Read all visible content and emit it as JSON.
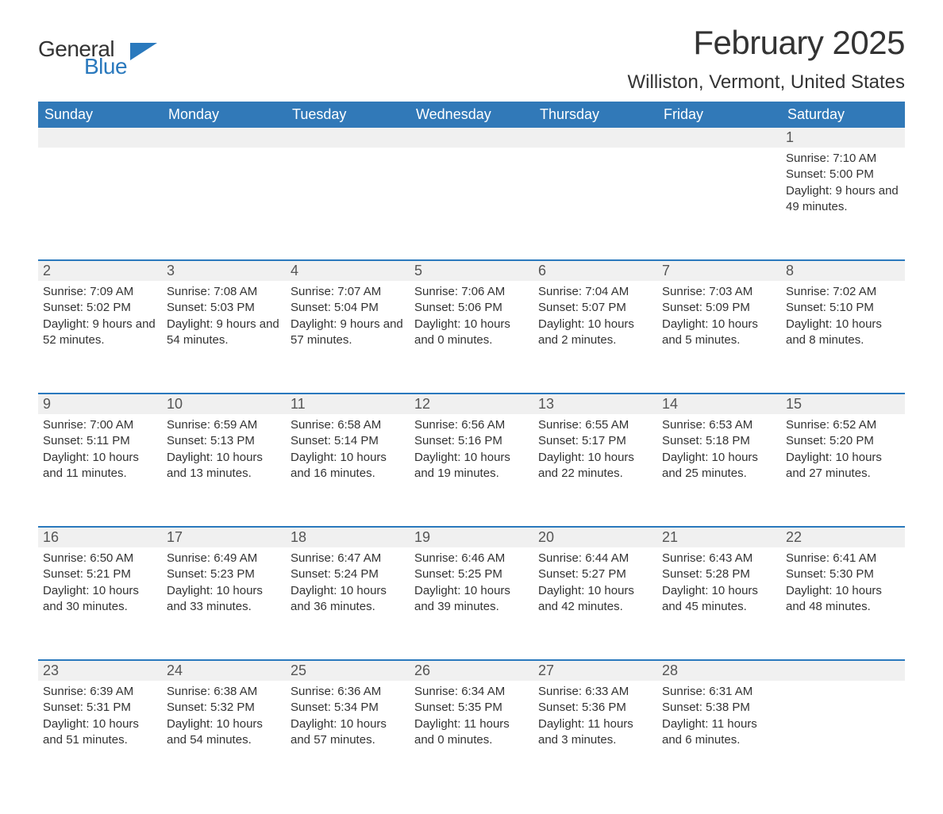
{
  "logo": {
    "word1": "General",
    "word2": "Blue"
  },
  "colors": {
    "header_bg": "#3179b8",
    "header_text": "#ffffff",
    "rule": "#2a79bd",
    "daynum_bg": "#f0f0f0",
    "text": "#333333",
    "page_bg": "#ffffff",
    "logo_blue": "#2a79bd"
  },
  "typography": {
    "title_size_pt": 32,
    "location_size_pt": 18,
    "weekday_size_pt": 14,
    "body_size_pt": 11
  },
  "title": "February 2025",
  "location": "Williston, Vermont, United States",
  "weekdays": [
    "Sunday",
    "Monday",
    "Tuesday",
    "Wednesday",
    "Thursday",
    "Friday",
    "Saturday"
  ],
  "weeks": [
    [
      null,
      null,
      null,
      null,
      null,
      null,
      {
        "n": "1",
        "sunrise": "7:10 AM",
        "sunset": "5:00 PM",
        "daylight": "9 hours and 49 minutes."
      }
    ],
    [
      {
        "n": "2",
        "sunrise": "7:09 AM",
        "sunset": "5:02 PM",
        "daylight": "9 hours and 52 minutes."
      },
      {
        "n": "3",
        "sunrise": "7:08 AM",
        "sunset": "5:03 PM",
        "daylight": "9 hours and 54 minutes."
      },
      {
        "n": "4",
        "sunrise": "7:07 AM",
        "sunset": "5:04 PM",
        "daylight": "9 hours and 57 minutes."
      },
      {
        "n": "5",
        "sunrise": "7:06 AM",
        "sunset": "5:06 PM",
        "daylight": "10 hours and 0 minutes."
      },
      {
        "n": "6",
        "sunrise": "7:04 AM",
        "sunset": "5:07 PM",
        "daylight": "10 hours and 2 minutes."
      },
      {
        "n": "7",
        "sunrise": "7:03 AM",
        "sunset": "5:09 PM",
        "daylight": "10 hours and 5 minutes."
      },
      {
        "n": "8",
        "sunrise": "7:02 AM",
        "sunset": "5:10 PM",
        "daylight": "10 hours and 8 minutes."
      }
    ],
    [
      {
        "n": "9",
        "sunrise": "7:00 AM",
        "sunset": "5:11 PM",
        "daylight": "10 hours and 11 minutes."
      },
      {
        "n": "10",
        "sunrise": "6:59 AM",
        "sunset": "5:13 PM",
        "daylight": "10 hours and 13 minutes."
      },
      {
        "n": "11",
        "sunrise": "6:58 AM",
        "sunset": "5:14 PM",
        "daylight": "10 hours and 16 minutes."
      },
      {
        "n": "12",
        "sunrise": "6:56 AM",
        "sunset": "5:16 PM",
        "daylight": "10 hours and 19 minutes."
      },
      {
        "n": "13",
        "sunrise": "6:55 AM",
        "sunset": "5:17 PM",
        "daylight": "10 hours and 22 minutes."
      },
      {
        "n": "14",
        "sunrise": "6:53 AM",
        "sunset": "5:18 PM",
        "daylight": "10 hours and 25 minutes."
      },
      {
        "n": "15",
        "sunrise": "6:52 AM",
        "sunset": "5:20 PM",
        "daylight": "10 hours and 27 minutes."
      }
    ],
    [
      {
        "n": "16",
        "sunrise": "6:50 AM",
        "sunset": "5:21 PM",
        "daylight": "10 hours and 30 minutes."
      },
      {
        "n": "17",
        "sunrise": "6:49 AM",
        "sunset": "5:23 PM",
        "daylight": "10 hours and 33 minutes."
      },
      {
        "n": "18",
        "sunrise": "6:47 AM",
        "sunset": "5:24 PM",
        "daylight": "10 hours and 36 minutes."
      },
      {
        "n": "19",
        "sunrise": "6:46 AM",
        "sunset": "5:25 PM",
        "daylight": "10 hours and 39 minutes."
      },
      {
        "n": "20",
        "sunrise": "6:44 AM",
        "sunset": "5:27 PM",
        "daylight": "10 hours and 42 minutes."
      },
      {
        "n": "21",
        "sunrise": "6:43 AM",
        "sunset": "5:28 PM",
        "daylight": "10 hours and 45 minutes."
      },
      {
        "n": "22",
        "sunrise": "6:41 AM",
        "sunset": "5:30 PM",
        "daylight": "10 hours and 48 minutes."
      }
    ],
    [
      {
        "n": "23",
        "sunrise": "6:39 AM",
        "sunset": "5:31 PM",
        "daylight": "10 hours and 51 minutes."
      },
      {
        "n": "24",
        "sunrise": "6:38 AM",
        "sunset": "5:32 PM",
        "daylight": "10 hours and 54 minutes."
      },
      {
        "n": "25",
        "sunrise": "6:36 AM",
        "sunset": "5:34 PM",
        "daylight": "10 hours and 57 minutes."
      },
      {
        "n": "26",
        "sunrise": "6:34 AM",
        "sunset": "5:35 PM",
        "daylight": "11 hours and 0 minutes."
      },
      {
        "n": "27",
        "sunrise": "6:33 AM",
        "sunset": "5:36 PM",
        "daylight": "11 hours and 3 minutes."
      },
      {
        "n": "28",
        "sunrise": "6:31 AM",
        "sunset": "5:38 PM",
        "daylight": "11 hours and 6 minutes."
      },
      null
    ]
  ],
  "labels": {
    "sunrise": "Sunrise: ",
    "sunset": "Sunset: ",
    "daylight": "Daylight: "
  }
}
